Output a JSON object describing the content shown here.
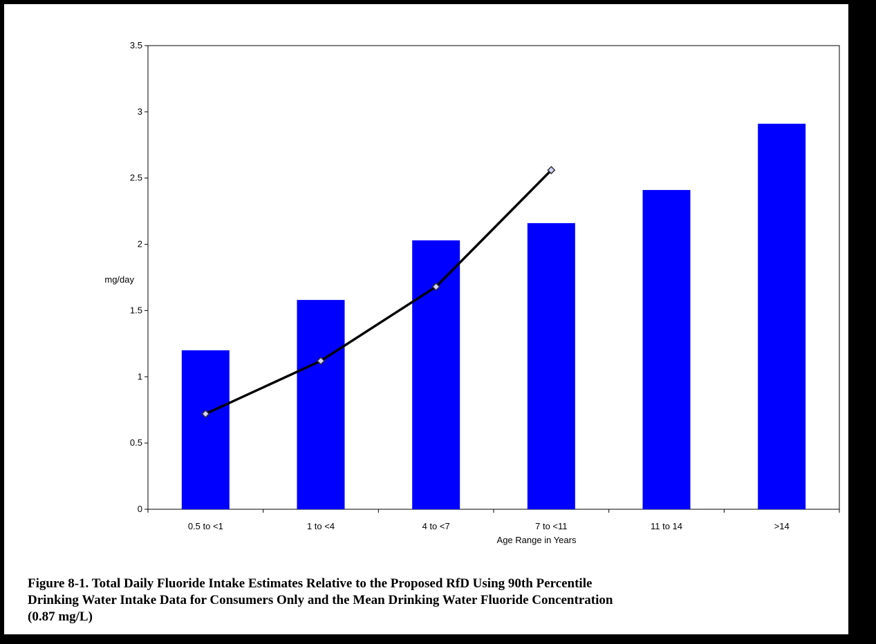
{
  "chart_data": {
    "type": "bar",
    "categories": [
      "0.5 to <1",
      "1 to <4",
      "4 to <7",
      "7 to <11",
      "11 to 14",
      ">14"
    ],
    "series": [
      {
        "type": "bar",
        "values": [
          1.2,
          1.58,
          2.03,
          2.16,
          2.41,
          2.91
        ]
      },
      {
        "type": "line",
        "values": [
          0.72,
          1.12,
          1.68,
          2.56,
          null,
          null
        ]
      }
    ],
    "xlabel": "Age Range in Years",
    "ylabel": "mg/day",
    "ylim": [
      0,
      3.5
    ],
    "yticks": [
      "0",
      "0.5",
      "1",
      "1.5",
      "2",
      "2.5",
      "3",
      "3.5"
    ],
    "ytick_values": [
      0,
      0.5,
      1,
      1.5,
      2,
      2.5,
      3,
      3.5
    ],
    "grid": false,
    "legend": "none",
    "colors": {
      "bar": "#0000ff",
      "line": "#000000",
      "marker": "#d6d6ff"
    }
  },
  "caption": {
    "line1": "Figure 8-1.  Total Daily Fluoride Intake Estimates Relative to the Proposed RfD Using 90th Percentile",
    "line2": "Drinking Water Intake Data for Consumers Only and the Mean Drinking Water Fluoride Concentration",
    "line3": "(0.87 mg/L)"
  }
}
